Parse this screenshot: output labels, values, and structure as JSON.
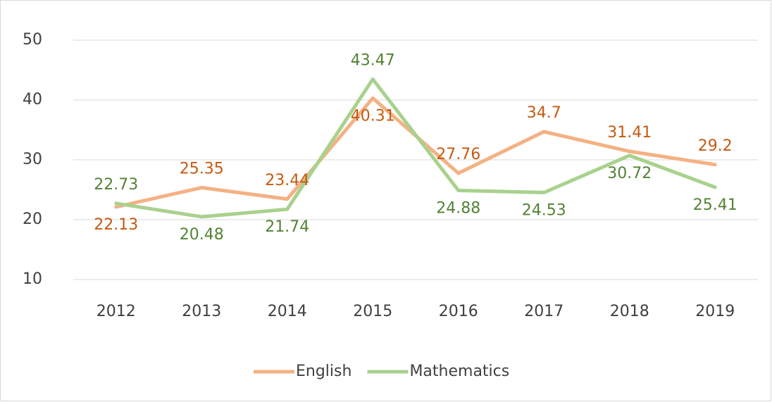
{
  "chart_data": {
    "type": "line",
    "categories": [
      "2012",
      "2013",
      "2014",
      "2015",
      "2016",
      "2017",
      "2018",
      "2019"
    ],
    "series": [
      {
        "name": "English",
        "color": "#f4b183",
        "label_color": "#c55a11",
        "values": [
          22.13,
          25.35,
          23.44,
          40.31,
          27.76,
          34.7,
          31.41,
          29.2
        ]
      },
      {
        "name": "Mathematics",
        "color": "#a9d18e",
        "label_color": "#548235",
        "values": [
          22.73,
          20.48,
          21.74,
          43.47,
          24.88,
          24.53,
          30.72,
          25.41
        ]
      }
    ],
    "ylim": [
      10,
      50
    ],
    "yticks": [
      10,
      20,
      30,
      40,
      50
    ],
    "grid": true,
    "legend": "bottom"
  }
}
